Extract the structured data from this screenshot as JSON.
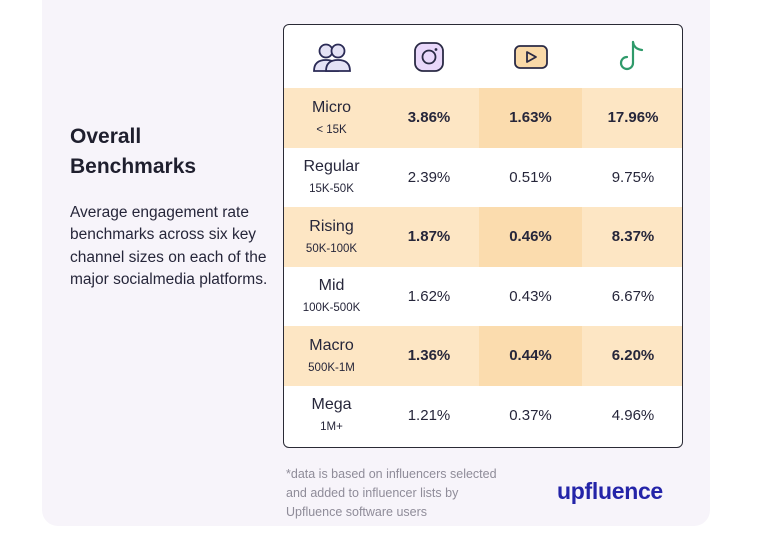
{
  "heading": [
    "Overall",
    "Benchmarks"
  ],
  "description": "Average engagement rate benchmarks across six key channel sizes on each of the major socialmedia platforms.",
  "footnote": "*data is based on influencers selected and added to influencer lists by Upfluence software users",
  "brand": "upfluence",
  "colors": {
    "highlight": "#fbdcae",
    "highlight_light": "#fde6c4",
    "icon_purple": "#e9d8fb",
    "icon_orange": "#f9d9a8",
    "icon_green": "#2f9a6a",
    "brand": "#2424a8"
  },
  "columns": [
    {
      "icon": "users-icon"
    },
    {
      "icon": "instagram-icon"
    },
    {
      "icon": "youtube-icon"
    },
    {
      "icon": "tiktok-icon"
    }
  ],
  "chart_data": {
    "type": "table",
    "rows": [
      {
        "name": "Micro",
        "range": "< 15K",
        "values": [
          "3.86%",
          "1.63%",
          "17.96%"
        ],
        "highlight": true
      },
      {
        "name": "Regular",
        "range": "15K-50K",
        "values": [
          "2.39%",
          "0.51%",
          "9.75%"
        ],
        "highlight": false
      },
      {
        "name": "Rising",
        "range": "50K-100K",
        "values": [
          "1.87%",
          "0.46%",
          "8.37%"
        ],
        "highlight": true
      },
      {
        "name": "Mid",
        "range": "100K-500K",
        "values": [
          "1.62%",
          "0.43%",
          "6.67%"
        ],
        "highlight": false
      },
      {
        "name": "Macro",
        "range": "500K-1M",
        "values": [
          "1.36%",
          "0.44%",
          "6.20%"
        ],
        "highlight": true
      },
      {
        "name": "Mega",
        "range": "1M+",
        "values": [
          "1.21%",
          "0.37%",
          "4.96%"
        ],
        "highlight": false
      }
    ]
  }
}
